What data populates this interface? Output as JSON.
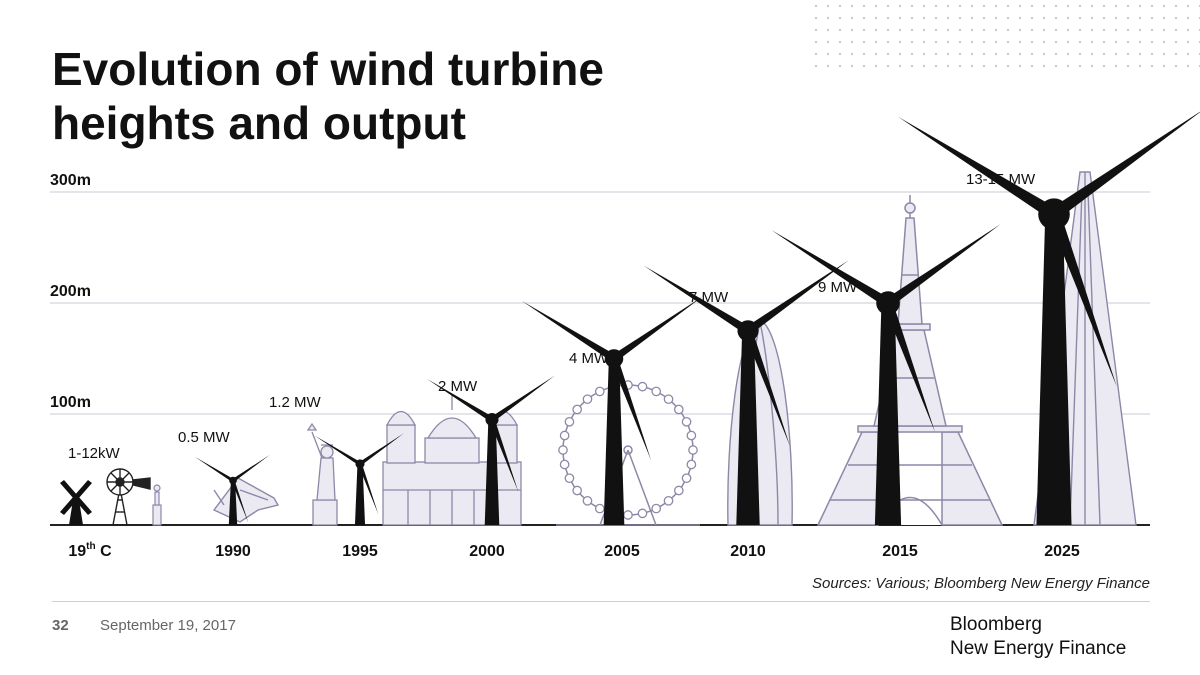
{
  "title_lines": [
    "Evolution of wind turbine",
    "heights and output"
  ],
  "footer": {
    "page_number": "32",
    "date": "September 19, 2017",
    "sources": "Sources: Various; Bloomberg New Energy Finance",
    "brand_lines": [
      "Bloomberg",
      "New Energy Finance"
    ]
  },
  "colors": {
    "turbine": "#111111",
    "landmark": "#8c88a8",
    "landmark_fill": "#ebe9f2",
    "grid": "#c9c9d6",
    "baseline": "#222222"
  },
  "chart_data": {
    "type": "bar",
    "title": "Evolution of wind turbine heights and output",
    "ylabel": "",
    "y_unit": "m",
    "ylim": [
      0,
      300
    ],
    "y_ticks": [
      {
        "value": 100,
        "label": "100m"
      },
      {
        "value": 200,
        "label": "200m"
      },
      {
        "value": 300,
        "label": "300m"
      }
    ],
    "categories": [
      "19th C",
      "1990",
      "1995",
      "2000",
      "2005",
      "2010",
      "2015",
      "2025"
    ],
    "category_label_parts": [
      {
        "main": "19",
        "sup": "th",
        "rest": " C"
      },
      {
        "main": "1990",
        "sup": "",
        "rest": ""
      },
      {
        "main": "1995",
        "sup": "",
        "rest": ""
      },
      {
        "main": "2000",
        "sup": "",
        "rest": ""
      },
      {
        "main": "2005",
        "sup": "",
        "rest": ""
      },
      {
        "main": "2010",
        "sup": "",
        "rest": ""
      },
      {
        "main": "2015",
        "sup": "",
        "rest": ""
      },
      {
        "main": "2025",
        "sup": "",
        "rest": ""
      }
    ],
    "series": [
      {
        "name": "",
        "values": [
          20,
          40,
          55,
          95,
          150,
          175,
          200,
          280
        ],
        "output_labels": [
          "1-12kW",
          "0.5 MW",
          "1.2 MW",
          "2 MW",
          "4 MW",
          "7 MW",
          "9 MW",
          "13-15 MW"
        ]
      }
    ],
    "landmark_icons": [
      "windmill-icon",
      "farm-windpump-icon",
      "small-figure-icon",
      "jumbo-jet-icon",
      "statue-of-liberty-icon",
      "st-pauls-cathedral-icon",
      "london-eye-icon",
      "gherkin-tower-icon",
      "eiffel-tower-icon",
      "the-shard-icon"
    ],
    "grid": true,
    "legend": "none"
  }
}
